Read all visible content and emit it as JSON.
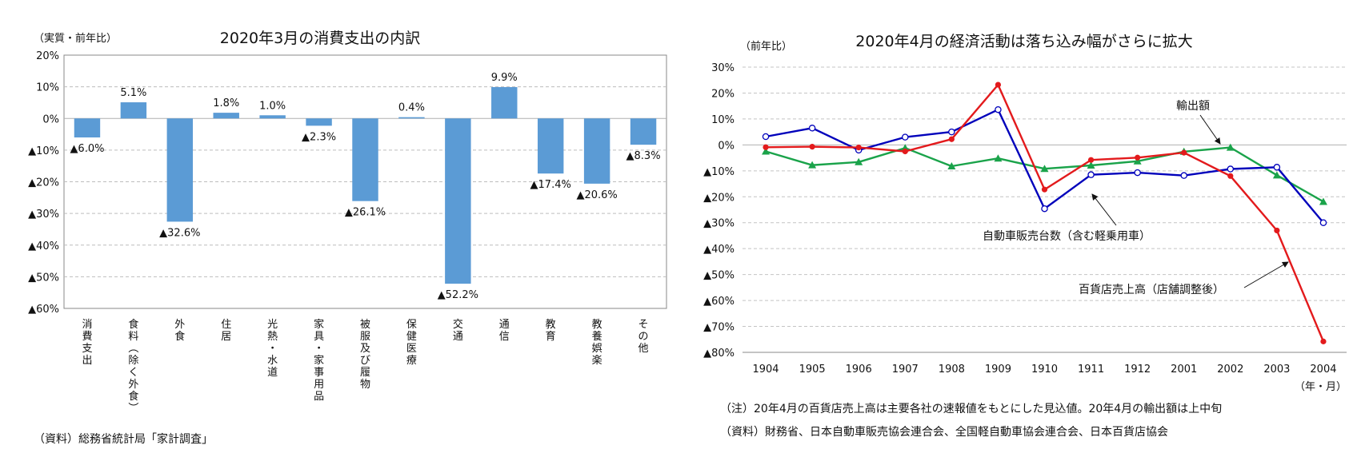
{
  "left_chart": {
    "title": "2020年3月の消費支出の内訳",
    "unit": "（実質・前年比）",
    "source": "（資料）総務省統計局「家計調査」",
    "chart_data": {
      "type": "bar",
      "ylim": [
        -60,
        20
      ],
      "yticks": [
        20,
        10,
        0,
        -10,
        -20,
        -30,
        -40,
        -50,
        -60
      ],
      "ytick_labels": [
        "20%",
        "10%",
        "0%",
        "▲10%",
        "▲20%",
        "▲30%",
        "▲40%",
        "▲50%",
        "▲60%"
      ],
      "categories": [
        "消費支出",
        "食料（除く外食）",
        "外食",
        "住居",
        "光熱・水道",
        "家具・家事用品",
        "被服及び履物",
        "保健医療",
        "交通",
        "通信",
        "教育",
        "教養娯楽",
        "その他"
      ],
      "values": [
        -6.0,
        5.1,
        -32.6,
        1.8,
        1.0,
        -2.3,
        -26.1,
        0.4,
        -52.2,
        9.9,
        -17.4,
        -20.6,
        -8.3
      ],
      "data_labels": [
        "▲6.0%",
        "5.1%",
        "▲32.6%",
        "1.8%",
        "1.0%",
        "▲2.3%",
        "▲26.1%",
        "0.4%",
        "▲52.2%",
        "9.9%",
        "▲17.4%",
        "▲20.6%",
        "▲8.3%"
      ],
      "bar_color": "#5b9bd5",
      "grid": true
    }
  },
  "right_chart": {
    "title": "2020年4月の経済活動は落ち込み幅がさらに拡大",
    "unit": "（前年比）",
    "x_unit": "（年・月）",
    "note1": "（注）20年4月の百貨店売上高は主要各社の速報値をもとにした見込値。20年4月の輸出額は上中旬",
    "note2": "（資料）財務省、日本自動車販売協会連合会、全国軽自動車協会連合会、日本百貨店協会",
    "chart_data": {
      "type": "line",
      "ylim": [
        -80,
        30
      ],
      "yticks": [
        30,
        20,
        10,
        0,
        -10,
        -20,
        -30,
        -40,
        -50,
        -60,
        -70,
        -80
      ],
      "ytick_labels": [
        "30%",
        "20%",
        "10%",
        "0%",
        "▲10%",
        "▲20%",
        "▲30%",
        "▲40%",
        "▲50%",
        "▲60%",
        "▲70%",
        "▲80%"
      ],
      "categories": [
        "1904",
        "1905",
        "1906",
        "1907",
        "1908",
        "1909",
        "1910",
        "1911",
        "1912",
        "2001",
        "2002",
        "2003",
        "2004"
      ],
      "grid": true,
      "series": [
        {
          "name": "輸出額",
          "color": "#1aa34a",
          "marker": "triangle",
          "values": [
            -2.5,
            -7.8,
            -6.6,
            -1.2,
            -8.2,
            -5.2,
            -9.2,
            -7.9,
            -6.3,
            -2.6,
            -1.0,
            -11.7,
            -21.9
          ]
        },
        {
          "name": "自動車販売台数（含む軽乗用車）",
          "color": "#0000bb",
          "marker": "circle-open",
          "values": [
            3.2,
            6.5,
            -2.0,
            3.0,
            5.0,
            13.6,
            -24.6,
            -11.5,
            -10.7,
            -11.8,
            -9.3,
            -8.6,
            -30.0
          ]
        },
        {
          "name": "百貨店売上高（店舗調整後）",
          "color": "#e31a1c",
          "marker": "circle",
          "values": [
            -0.9,
            -0.7,
            -1.0,
            -2.5,
            2.2,
            23.2,
            -17.2,
            -5.8,
            -4.9,
            -3.0,
            -12.0,
            -33.0,
            -75.8
          ]
        }
      ]
    }
  }
}
